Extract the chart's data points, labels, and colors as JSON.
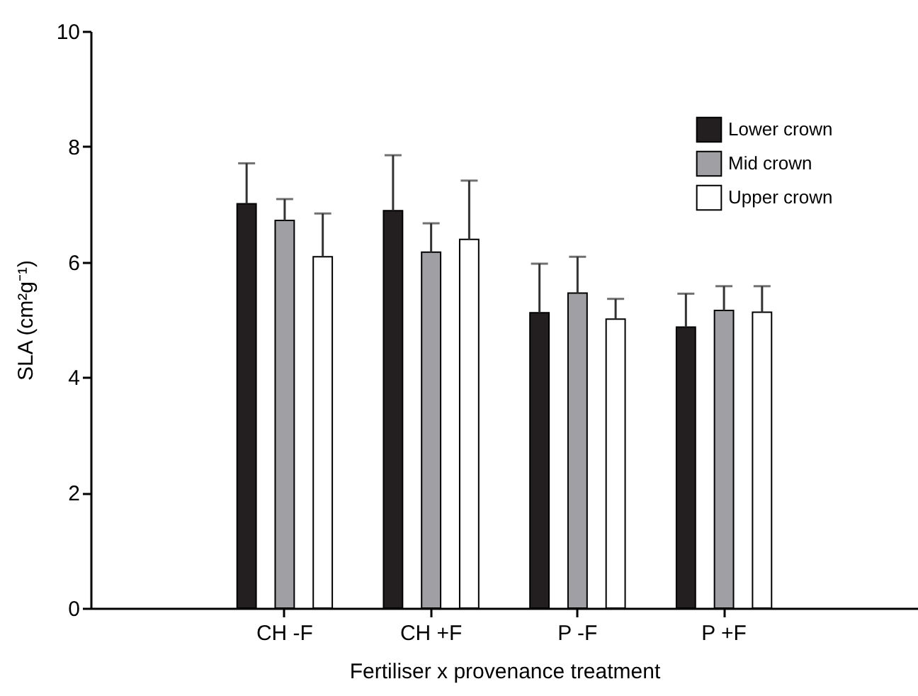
{
  "chart_data": {
    "type": "bar",
    "xlabel": "Fertiliser x provenance treatment",
    "ylabel": "SLA (cm²g⁻¹)",
    "categories": [
      "CH -F",
      "CH +F",
      "P -F",
      "P +F"
    ],
    "series": [
      {
        "name": "Lower crown",
        "color": "#231f20",
        "values": [
          7.01,
          6.89,
          5.12,
          4.87
        ],
        "errors": [
          [
            7.01,
            7.71
          ],
          [
            6.89,
            7.85
          ],
          [
            5.12,
            5.97
          ],
          [
            4.87,
            5.45
          ]
        ]
      },
      {
        "name": "Mid crown",
        "color": "#a0a0a4",
        "values": [
          6.72,
          6.17,
          5.46,
          5.16
        ],
        "errors": [
          [
            6.72,
            7.09
          ],
          [
            6.17,
            6.67
          ],
          [
            5.46,
            6.09
          ],
          [
            5.16,
            5.58
          ]
        ]
      },
      {
        "name": "Upper crown",
        "color": "#ffffff",
        "values": [
          6.09,
          6.39,
          5.01,
          5.13
        ],
        "errors": [
          [
            6.09,
            6.84
          ],
          [
            6.39,
            7.41
          ],
          [
            5.01,
            5.36
          ],
          [
            5.13,
            5.58
          ]
        ]
      }
    ],
    "ylim": [
      0,
      10
    ],
    "yticks": [
      0,
      2,
      4,
      6,
      8,
      10
    ],
    "grid": false,
    "legend": "top right"
  }
}
